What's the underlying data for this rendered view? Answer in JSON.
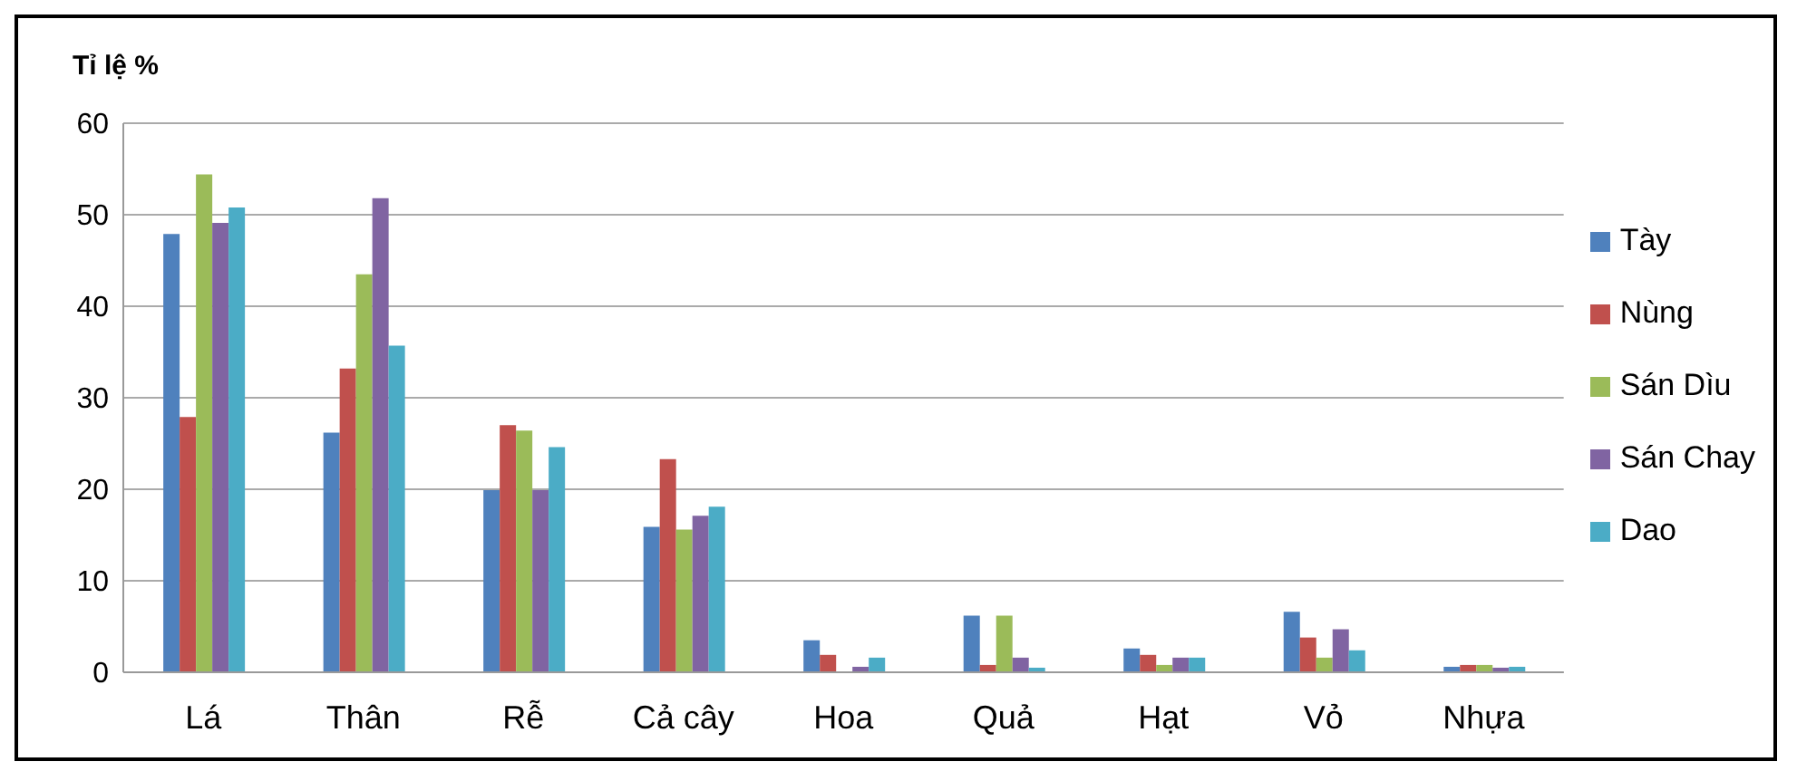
{
  "chart_data": {
    "type": "bar",
    "ylabel": "Tỉ lệ %",
    "categories": [
      "Lá",
      "Thân",
      "Rễ",
      "Cả cây",
      "Hoa",
      "Quả",
      "Hạt",
      "Vỏ",
      "Nhựa"
    ],
    "series": [
      {
        "name": "Tày",
        "color": "#4f81bd",
        "values": [
          47.9,
          26.2,
          19.9,
          15.9,
          3.5,
          6.2,
          2.6,
          6.6,
          0.6
        ]
      },
      {
        "name": "Nùng",
        "color": "#c0504d",
        "values": [
          27.9,
          33.2,
          27.0,
          23.3,
          1.9,
          0.8,
          1.9,
          3.8,
          0.8
        ]
      },
      {
        "name": "Sán Dìu",
        "color": "#9bbb59",
        "values": [
          54.4,
          43.5,
          26.4,
          15.6,
          0,
          6.2,
          0.8,
          1.6,
          0.8
        ]
      },
      {
        "name": "Sán Chay",
        "color": "#8064a2",
        "values": [
          49.1,
          51.8,
          19.9,
          17.1,
          0.6,
          1.6,
          1.6,
          4.7,
          0.5
        ]
      },
      {
        "name": "Dao",
        "color": "#4bacc6",
        "values": [
          50.8,
          35.7,
          24.6,
          18.1,
          1.6,
          0.5,
          1.6,
          2.4,
          0.6
        ]
      }
    ],
    "ylim": [
      0,
      60
    ],
    "yticks": [
      0,
      10,
      20,
      30,
      40,
      50,
      60
    ],
    "grid": "y",
    "legend": "right"
  }
}
